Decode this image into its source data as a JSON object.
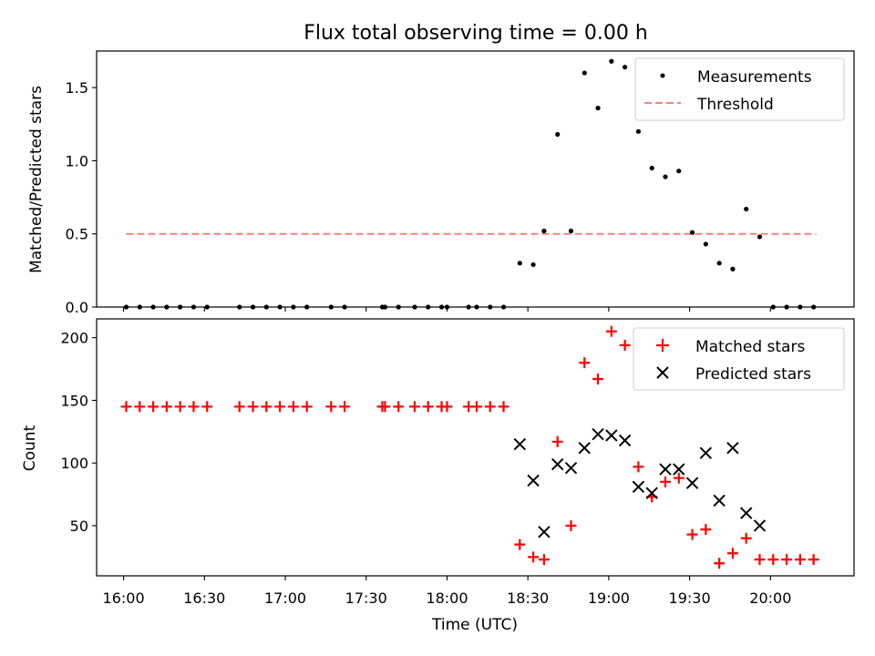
{
  "chart_data": [
    {
      "type": "scatter",
      "title": "Flux total observing time = 0.00 h",
      "ylabel": "Matched/Predicted stars",
      "ylim": [
        0,
        1.75
      ],
      "yticks": [
        "0.0",
        "0.5",
        "1.0",
        "1.5"
      ],
      "grid": false,
      "legend_placement": "top-right",
      "legend": [
        "Measurements",
        "Threshold"
      ],
      "threshold": {
        "name": "Threshold",
        "value": 0.5,
        "x_start": "16:01",
        "x_end": "20:17",
        "color": "#ff7f7f",
        "style": "dashed"
      },
      "series": [
        {
          "name": "Measurements",
          "color": "#000000",
          "marker": "dot",
          "points": [
            [
              "16:01",
              0
            ],
            [
              "16:06",
              0
            ],
            [
              "16:11",
              0
            ],
            [
              "16:16",
              0
            ],
            [
              "16:21",
              0
            ],
            [
              "16:26",
              0
            ],
            [
              "16:31",
              0
            ],
            [
              "16:43",
              0
            ],
            [
              "16:48",
              0
            ],
            [
              "16:53",
              0
            ],
            [
              "16:58",
              0
            ],
            [
              "17:03",
              0
            ],
            [
              "17:08",
              0
            ],
            [
              "17:17",
              0
            ],
            [
              "17:22",
              0
            ],
            [
              "17:36",
              0
            ],
            [
              "17:37",
              0
            ],
            [
              "17:42",
              0
            ],
            [
              "17:48",
              0
            ],
            [
              "17:53",
              0
            ],
            [
              "17:58",
              0
            ],
            [
              "18:00",
              0
            ],
            [
              "18:08",
              0
            ],
            [
              "18:11",
              0
            ],
            [
              "18:16",
              0
            ],
            [
              "18:21",
              0
            ],
            [
              "18:27",
              0.3
            ],
            [
              "18:32",
              0.29
            ],
            [
              "18:36",
              0.52
            ],
            [
              "18:41",
              1.18
            ],
            [
              "18:46",
              0.52
            ],
            [
              "18:51",
              1.6
            ],
            [
              "18:56",
              1.36
            ],
            [
              "19:01",
              1.68
            ],
            [
              "19:06",
              1.64
            ],
            [
              "19:11",
              1.2
            ],
            [
              "19:16",
              0.95
            ],
            [
              "19:21",
              0.89
            ],
            [
              "19:26",
              0.93
            ],
            [
              "19:31",
              0.51
            ],
            [
              "19:36",
              0.43
            ],
            [
              "19:41",
              0.3
            ],
            [
              "19:46",
              0.26
            ],
            [
              "19:51",
              0.67
            ],
            [
              "19:56",
              0.48
            ],
            [
              "20:01",
              0
            ],
            [
              "20:06",
              0
            ],
            [
              "20:11",
              0
            ],
            [
              "20:16",
              0
            ]
          ]
        }
      ]
    },
    {
      "type": "scatter",
      "xlabel": "Time (UTC)",
      "ylabel": "Count",
      "xlim": [
        "15:50",
        "20:31"
      ],
      "ylim": [
        10,
        215
      ],
      "xticks": [
        "16:00",
        "16:30",
        "17:00",
        "17:30",
        "18:00",
        "18:30",
        "19:00",
        "19:30",
        "20:00"
      ],
      "yticks": [
        "50",
        "100",
        "150",
        "200"
      ],
      "grid": false,
      "legend_placement": "top-right",
      "legend": [
        "Matched stars",
        "Predicted stars"
      ],
      "series": [
        {
          "name": "Matched stars",
          "color": "#ff0000",
          "marker": "plus",
          "points": [
            [
              "16:01",
              145
            ],
            [
              "16:06",
              145
            ],
            [
              "16:11",
              145
            ],
            [
              "16:16",
              145
            ],
            [
              "16:21",
              145
            ],
            [
              "16:26",
              145
            ],
            [
              "16:31",
              145
            ],
            [
              "16:43",
              145
            ],
            [
              "16:48",
              145
            ],
            [
              "16:53",
              145
            ],
            [
              "16:58",
              145
            ],
            [
              "17:03",
              145
            ],
            [
              "17:08",
              145
            ],
            [
              "17:17",
              145
            ],
            [
              "17:22",
              145
            ],
            [
              "17:36",
              145
            ],
            [
              "17:37",
              145
            ],
            [
              "17:42",
              145
            ],
            [
              "17:48",
              145
            ],
            [
              "17:53",
              145
            ],
            [
              "17:58",
              145
            ],
            [
              "18:00",
              145
            ],
            [
              "18:08",
              145
            ],
            [
              "18:11",
              145
            ],
            [
              "18:16",
              145
            ],
            [
              "18:21",
              145
            ],
            [
              "18:27",
              35
            ],
            [
              "18:32",
              25
            ],
            [
              "18:36",
              23
            ],
            [
              "18:41",
              117
            ],
            [
              "18:46",
              50
            ],
            [
              "18:51",
              180
            ],
            [
              "18:56",
              167
            ],
            [
              "19:01",
              205
            ],
            [
              "19:06",
              194
            ],
            [
              "19:11",
              97
            ],
            [
              "19:16",
              73
            ],
            [
              "19:21",
              85
            ],
            [
              "19:26",
              88
            ],
            [
              "19:31",
              43
            ],
            [
              "19:36",
              47
            ],
            [
              "19:41",
              20
            ],
            [
              "19:46",
              28
            ],
            [
              "19:51",
              40
            ],
            [
              "19:56",
              23
            ],
            [
              "20:01",
              23
            ],
            [
              "20:06",
              23
            ],
            [
              "20:11",
              23
            ],
            [
              "20:16",
              23
            ]
          ]
        },
        {
          "name": "Predicted stars",
          "color": "#000000",
          "marker": "x",
          "points": [
            [
              "18:27",
              115
            ],
            [
              "18:32",
              86
            ],
            [
              "18:36",
              45
            ],
            [
              "18:41",
              99
            ],
            [
              "18:46",
              96
            ],
            [
              "18:51",
              112
            ],
            [
              "18:56",
              123
            ],
            [
              "19:01",
              122
            ],
            [
              "19:06",
              118
            ],
            [
              "19:11",
              81
            ],
            [
              "19:16",
              76
            ],
            [
              "19:21",
              95
            ],
            [
              "19:26",
              95
            ],
            [
              "19:31",
              84
            ],
            [
              "19:36",
              108
            ],
            [
              "19:41",
              70
            ],
            [
              "19:46",
              112
            ],
            [
              "19:51",
              60
            ],
            [
              "19:56",
              50
            ]
          ]
        }
      ]
    }
  ]
}
